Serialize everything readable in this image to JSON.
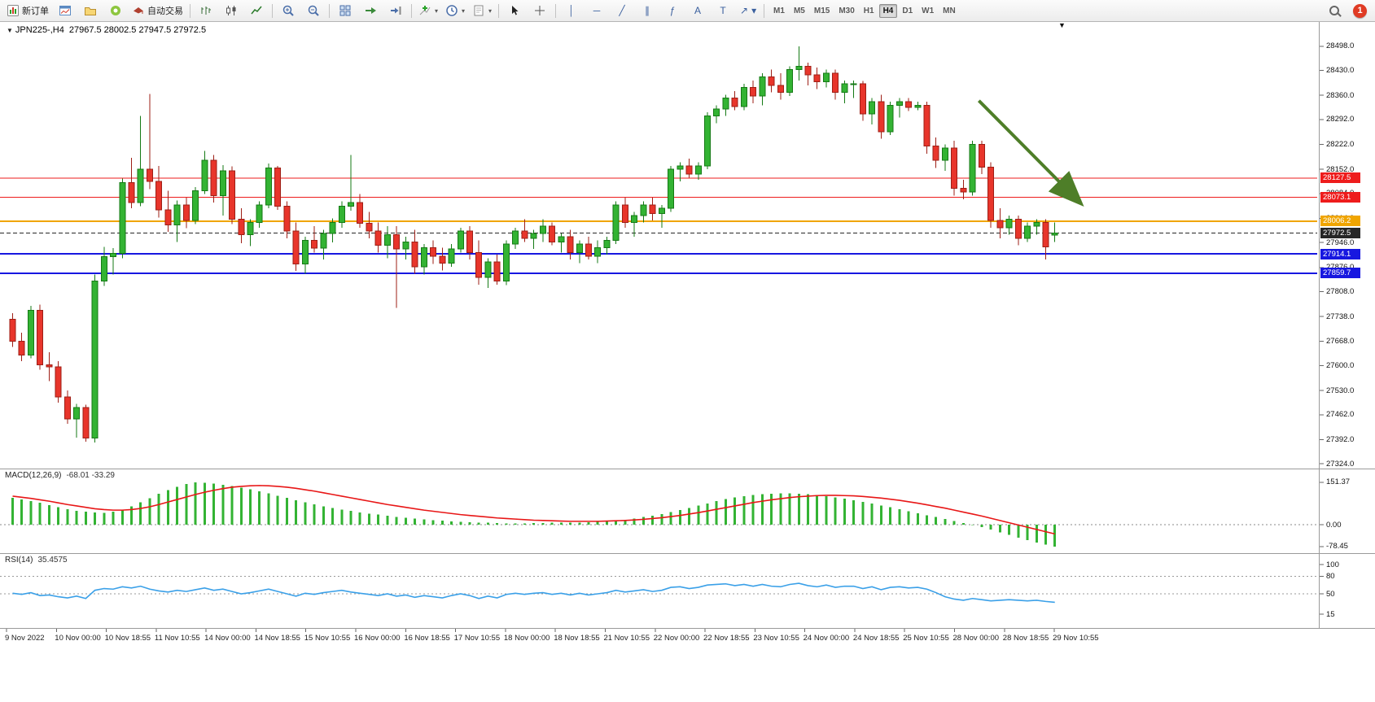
{
  "toolbar": {
    "new_order": "新订单",
    "autotrading": "自动交易",
    "timeframes": [
      "M1",
      "M5",
      "M15",
      "M30",
      "H1",
      "H4",
      "D1",
      "W1",
      "MN"
    ],
    "active_timeframe": "H4",
    "notification": "1"
  },
  "icons": {
    "vertical_line": "│",
    "horizontal_line": "─",
    "trendline": "╱",
    "channel": "∥",
    "fibonacci": "ƒ",
    "text_tool": "A",
    "label_tool": "T",
    "arrows_tool": "↗",
    "caret": "▾",
    "shift_marker": "▼",
    "symbol_marker": "▼"
  },
  "chart": {
    "symbol": "JPN225-,H4",
    "ohlc": "27967.5 28002.5 27947.5 27972.5",
    "price_axis_labels": [
      "28498.0",
      "28430.0",
      "28360.0",
      "28292.0",
      "28222.0",
      "28152.0",
      "28084.0",
      "28014.0",
      "27946.0",
      "27876.0",
      "27808.0",
      "27738.0",
      "27668.0",
      "27600.0",
      "27530.0",
      "27462.0",
      "27392.0",
      "27324.0"
    ],
    "levels": [
      {
        "label": "28127.5",
        "price": 28127.5,
        "color": "#ee1c1c",
        "line_width": 1
      },
      {
        "label": "28073.1",
        "price": 28073.1,
        "color": "#ee1c1c",
        "line_width": 1
      },
      {
        "label": "28006.2",
        "price": 28006.2,
        "color": "#f0a500",
        "line_width": 2
      },
      {
        "label": "27914.1",
        "price": 27914.1,
        "color": "#1717e0",
        "line_width": 2
      },
      {
        "label": "27859.7",
        "price": 27859.7,
        "color": "#1717e0",
        "line_width": 2
      }
    ],
    "current_price": {
      "label": "27972.5",
      "price": 27972.5,
      "color": "#262626"
    },
    "arrow": {
      "from_bar": 106,
      "from_price": 28345,
      "to_bar": 117,
      "to_price": 28060,
      "color": "#4e7e28"
    },
    "colors": {
      "up": "#33b333",
      "up_border": "#157a15",
      "down": "#e8352b",
      "down_border": "#9e1f16",
      "macd_hist": "#33b333",
      "macd_signal": "#e81717",
      "rsi_line": "#3aa0e8"
    },
    "candles": [
      [
        27730,
        27748,
        27652,
        27668
      ],
      [
        27668,
        27692,
        27612,
        27630
      ],
      [
        27630,
        27768,
        27620,
        27756
      ],
      [
        27756,
        27772,
        27588,
        27602
      ],
      [
        27602,
        27638,
        27556,
        27596
      ],
      [
        27596,
        27612,
        27496,
        27512
      ],
      [
        27512,
        27530,
        27436,
        27450
      ],
      [
        27450,
        27492,
        27398,
        27482
      ],
      [
        27482,
        27490,
        27386,
        27396
      ],
      [
        27396,
        27856,
        27384,
        27838
      ],
      [
        27838,
        27934,
        27824,
        27906
      ],
      [
        27906,
        27930,
        27856,
        27916
      ],
      [
        27916,
        28126,
        27902,
        28114
      ],
      [
        28114,
        28184,
        28042,
        28058
      ],
      [
        28058,
        28302,
        28048,
        28152
      ],
      [
        28152,
        28364,
        28096,
        28118
      ],
      [
        28118,
        28162,
        28016,
        28038
      ],
      [
        28038,
        28092,
        27976,
        27996
      ],
      [
        27996,
        28064,
        27948,
        28052
      ],
      [
        28052,
        28072,
        27986,
        28008
      ],
      [
        28008,
        28102,
        27998,
        28092
      ],
      [
        28092,
        28204,
        28082,
        28178
      ],
      [
        28178,
        28192,
        28058,
        28078
      ],
      [
        28078,
        28164,
        28022,
        28148
      ],
      [
        28148,
        28160,
        27998,
        28012
      ],
      [
        28012,
        28042,
        27944,
        27968
      ],
      [
        27968,
        28012,
        27936,
        28002
      ],
      [
        28002,
        28062,
        27988,
        28052
      ],
      [
        28052,
        28168,
        28042,
        28156
      ],
      [
        28156,
        28162,
        28038,
        28048
      ],
      [
        28048,
        28062,
        27958,
        27978
      ],
      [
        27978,
        28002,
        27866,
        27886
      ],
      [
        27886,
        27962,
        27858,
        27952
      ],
      [
        27952,
        27992,
        27918,
        27930
      ],
      [
        27930,
        27982,
        27898,
        27972
      ],
      [
        27972,
        28014,
        27946,
        28002
      ],
      [
        28002,
        28062,
        27988,
        28048
      ],
      [
        28048,
        28192,
        28036,
        28058
      ],
      [
        28058,
        28082,
        27988,
        28000
      ],
      [
        28000,
        28032,
        27958,
        27978
      ],
      [
        27978,
        28002,
        27918,
        27938
      ],
      [
        27938,
        27992,
        27902,
        27968
      ],
      [
        27968,
        27992,
        27762,
        27928
      ],
      [
        27928,
        27962,
        27898,
        27948
      ],
      [
        27948,
        27982,
        27858,
        27878
      ],
      [
        27878,
        27942,
        27856,
        27932
      ],
      [
        27932,
        27952,
        27886,
        27908
      ],
      [
        27908,
        27932,
        27868,
        27888
      ],
      [
        27888,
        27942,
        27878,
        27928
      ],
      [
        27928,
        27988,
        27918,
        27978
      ],
      [
        27978,
        27992,
        27898,
        27918
      ],
      [
        27918,
        27952,
        27828,
        27848
      ],
      [
        27848,
        27902,
        27818,
        27892
      ],
      [
        27892,
        27912,
        27828,
        27838
      ],
      [
        27838,
        27952,
        27826,
        27942
      ],
      [
        27942,
        27988,
        27928,
        27978
      ],
      [
        27978,
        28012,
        27948,
        27958
      ],
      [
        27958,
        27982,
        27928,
        27972
      ],
      [
        27972,
        28012,
        27948,
        27992
      ],
      [
        27992,
        28002,
        27938,
        27948
      ],
      [
        27948,
        27972,
        27918,
        27962
      ],
      [
        27962,
        27982,
        27898,
        27918
      ],
      [
        27918,
        27952,
        27888,
        27942
      ],
      [
        27942,
        27962,
        27898,
        27908
      ],
      [
        27908,
        27952,
        27888,
        27932
      ],
      [
        27932,
        27962,
        27912,
        27952
      ],
      [
        27952,
        28062,
        27942,
        28052
      ],
      [
        28052,
        28072,
        27988,
        28002
      ],
      [
        28002,
        28032,
        27962,
        28022
      ],
      [
        28022,
        28062,
        28002,
        28052
      ],
      [
        28052,
        28072,
        28008,
        28028
      ],
      [
        28028,
        28052,
        27988,
        28042
      ],
      [
        28042,
        28162,
        28032,
        28152
      ],
      [
        28152,
        28172,
        28118,
        28162
      ],
      [
        28162,
        28182,
        28128,
        28138
      ],
      [
        28138,
        28172,
        28122,
        28162
      ],
      [
        28162,
        28312,
        28152,
        28302
      ],
      [
        28302,
        28332,
        28282,
        28322
      ],
      [
        28322,
        28362,
        28302,
        28352
      ],
      [
        28352,
        28372,
        28318,
        28328
      ],
      [
        28328,
        28392,
        28318,
        28382
      ],
      [
        28382,
        28402,
        28338,
        28358
      ],
      [
        28358,
        28422,
        28332,
        28412
      ],
      [
        28412,
        28432,
        28368,
        28388
      ],
      [
        28388,
        28422,
        28348,
        28368
      ],
      [
        28368,
        28442,
        28358,
        28432
      ],
      [
        28432,
        28498,
        28402,
        28442
      ],
      [
        28442,
        28452,
        28388,
        28418
      ],
      [
        28418,
        28438,
        28378,
        28398
      ],
      [
        28398,
        28432,
        28382,
        28422
      ],
      [
        28422,
        28432,
        28348,
        28368
      ],
      [
        28368,
        28402,
        28338,
        28392
      ],
      [
        28392,
        28402,
        28352,
        28392
      ],
      [
        28392,
        28400,
        28288,
        28308
      ],
      [
        28308,
        28352,
        28278,
        28342
      ],
      [
        28342,
        28362,
        28238,
        28258
      ],
      [
        28258,
        28342,
        28248,
        28332
      ],
      [
        28332,
        28352,
        28298,
        28342
      ],
      [
        28342,
        28352,
        28316,
        28326
      ],
      [
        28326,
        28342,
        28318,
        28332
      ],
      [
        28332,
        28342,
        28196,
        28218
      ],
      [
        28218,
        28242,
        28156,
        28178
      ],
      [
        28178,
        28222,
        28148,
        28212
      ],
      [
        28212,
        28232,
        28078,
        28098
      ],
      [
        28098,
        28122,
        28068,
        28088
      ],
      [
        28088,
        28232,
        28078,
        28222
      ],
      [
        28222,
        28232,
        28138,
        28158
      ],
      [
        28158,
        28172,
        27988,
        28008
      ],
      [
        28008,
        28042,
        27958,
        27988
      ],
      [
        27988,
        28022,
        27968,
        28012
      ],
      [
        28012,
        28022,
        27938,
        27958
      ],
      [
        27958,
        28002,
        27948,
        27992
      ],
      [
        27992,
        28012,
        27968,
        28002
      ],
      [
        28002,
        28012,
        27898,
        27934
      ],
      [
        27967.5,
        28002.5,
        27947.5,
        27972.5
      ]
    ]
  },
  "macd": {
    "title": "MACD(12,26,9)",
    "values": "-68.01 -33.29",
    "axis_labels": [
      "151.37",
      "0.00",
      "-78.45"
    ],
    "axis_values": [
      151.37,
      0,
      -78.45
    ],
    "hist": [
      96,
      90,
      84,
      78,
      70,
      62,
      55,
      50,
      46,
      43,
      42,
      46,
      54,
      66,
      80,
      95,
      110,
      124,
      136,
      145,
      151,
      150,
      147,
      143,
      138,
      132,
      126,
      119,
      112,
      104,
      96,
      88,
      80,
      73,
      66,
      60,
      54,
      49,
      44,
      40,
      36,
      32,
      28,
      25,
      22,
      19,
      16,
      14,
      12,
      10,
      9,
      8,
      7,
      6,
      5,
      5,
      5,
      6,
      6,
      7,
      7,
      8,
      8,
      9,
      10,
      12,
      15,
      18,
      22,
      27,
      32,
      38,
      45,
      52,
      60,
      68,
      76,
      84,
      91,
      97,
      102,
      106,
      109,
      111,
      112,
      112,
      111,
      109,
      106,
      102,
      98,
      93,
      88,
      82,
      76,
      69,
      62,
      55,
      48,
      41,
      34,
      27,
      20,
      13,
      6,
      -1,
      -9,
      -18,
      -27,
      -37,
      -47,
      -56,
      -64,
      -71,
      -78
    ],
    "signal": [
      102,
      98,
      94,
      89,
      84,
      78,
      72,
      67,
      62,
      57,
      54,
      52,
      52,
      54,
      58,
      64,
      72,
      81,
      90,
      99,
      108,
      116,
      123,
      129,
      134,
      137,
      139,
      140,
      139,
      137,
      134,
      130,
      125,
      120,
      114,
      108,
      102,
      96,
      90,
      84,
      78,
      72,
      67,
      62,
      57,
      52,
      48,
      44,
      40,
      36,
      33,
      30,
      27,
      24,
      22,
      20,
      18,
      16,
      15,
      14,
      13,
      12,
      12,
      12,
      12,
      13,
      14,
      15,
      17,
      19,
      22,
      25,
      29,
      33,
      38,
      43,
      49,
      55,
      61,
      67,
      73,
      79,
      84,
      89,
      93,
      97,
      100,
      102,
      104,
      105,
      105,
      104,
      103,
      101,
      98,
      95,
      91,
      87,
      82,
      77,
      71,
      65,
      59,
      52,
      45,
      38,
      31,
      23,
      15,
      7,
      -1,
      -9,
      -17,
      -25,
      -33
    ]
  },
  "rsi": {
    "title": "RSI(14)",
    "value": "35.4575",
    "axis_labels": [
      "100",
      "80",
      "50",
      "15"
    ],
    "axis_values": [
      100,
      80,
      50,
      15
    ],
    "levels": [
      80,
      50
    ],
    "points": [
      51,
      49,
      52,
      47,
      48,
      45,
      43,
      46,
      42,
      56,
      59,
      58,
      62,
      60,
      63,
      58,
      55,
      53,
      56,
      54,
      57,
      60,
      56,
      58,
      54,
      50,
      52,
      55,
      58,
      54,
      50,
      46,
      51,
      49,
      52,
      54,
      56,
      53,
      51,
      49,
      47,
      50,
      46,
      48,
      44,
      47,
      45,
      43,
      47,
      50,
      47,
      42,
      46,
      43,
      49,
      51,
      49,
      51,
      52,
      49,
      51,
      48,
      51,
      48,
      50,
      52,
      56,
      53,
      55,
      57,
      54,
      56,
      61,
      62,
      59,
      61,
      65,
      66,
      67,
      64,
      66,
      63,
      66,
      63,
      62,
      66,
      68,
      64,
      62,
      65,
      61,
      63,
      63,
      59,
      62,
      57,
      61,
      62,
      60,
      61,
      58,
      52,
      45,
      41,
      39,
      42,
      40,
      38,
      39,
      40,
      39,
      38,
      39,
      37,
      35.46
    ]
  },
  "time_axis_labels": [
    "9 Nov 2022",
    "10 Nov 00:00",
    "10 Nov 18:55",
    "11 Nov 10:55",
    "14 Nov 00:00",
    "14 Nov 18:55",
    "15 Nov 10:55",
    "16 Nov 00:00",
    "16 Nov 18:55",
    "17 Nov 10:55",
    "18 Nov 00:00",
    "18 Nov 18:55",
    "21 Nov 10:55",
    "22 Nov 00:00",
    "22 Nov 18:55",
    "23 Nov 10:55",
    "24 Nov 00:00",
    "24 Nov 18:55",
    "25 Nov 10:55",
    "28 Nov 00:00",
    "28 Nov 18:55",
    "29 Nov 10:55"
  ]
}
